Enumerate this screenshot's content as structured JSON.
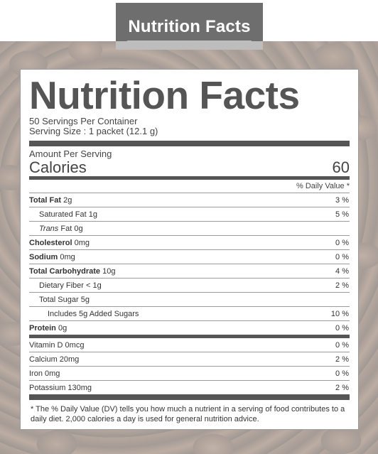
{
  "header": {
    "title": "Nutrition Facts"
  },
  "label": {
    "heading": "Nutrition Facts",
    "servings_per_container": "50 Servings Per Container",
    "serving_size": "Serving Size : 1 packet (12.1 g)",
    "amount_per_serving": "Amount Per Serving",
    "calories_label": "Calories",
    "calories_value": "60",
    "dv_header": "% Daily Value *",
    "nutrients": [
      {
        "name": "Total Fat",
        "amount": "2g",
        "dv": "3 %"
      },
      {
        "name": "Saturated Fat",
        "amount": "1g",
        "dv": "5 %"
      },
      {
        "name": "Trans",
        "amount": "Fat 0g",
        "dv": ""
      },
      {
        "name": "Cholesterol",
        "amount": "0mg",
        "dv": "0 %"
      },
      {
        "name": "Sodium",
        "amount": "0mg",
        "dv": "0 %"
      },
      {
        "name": "Total Carbohydrate",
        "amount": "10g",
        "dv": "4 %"
      },
      {
        "name": "Dietary Fiber",
        "amount": "< 1g",
        "dv": "2 %"
      },
      {
        "name": "Total Sugar",
        "amount": "5g",
        "dv": ""
      },
      {
        "name": "Includes 5g Added Sugars",
        "amount": "",
        "dv": "10 %"
      },
      {
        "name": "Protein",
        "amount": "0g",
        "dv": "0 %"
      }
    ],
    "vitamins": [
      {
        "name": "Vitamin D 0mcg",
        "dv": "0 %"
      },
      {
        "name": "Calcium 20mg",
        "dv": "2 %"
      },
      {
        "name": "Iron 0mg",
        "dv": "0 %"
      },
      {
        "name": "Potassium 130mg",
        "dv": "2 %"
      }
    ],
    "footnote": "* The % Daily Value (DV) tells you how much a nutrient in a serving of food contributes to a daily diet. 2,000 calories a day is used for general nutrition advice."
  },
  "colors": {
    "tag_bg": "#6e6e6e",
    "rule": "#555555",
    "text": "#333333"
  }
}
